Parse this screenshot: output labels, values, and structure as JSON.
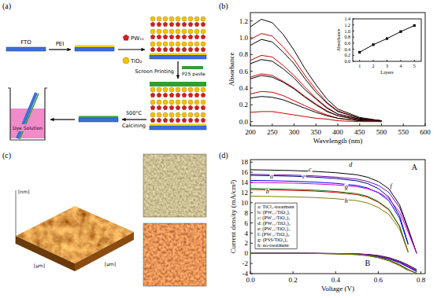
{
  "panel_labels": [
    "(a)",
    "(b)",
    "(c)",
    "(d)"
  ],
  "diagram": {
    "fto": "FTO",
    "pei": "PEI",
    "pw11": "PW₁₁",
    "tio2": "TiO₂",
    "screen_printing": "Screen Printing",
    "p25_paste": "P25 paste",
    "temperature": "500°C",
    "calcining": "Calcining",
    "dye_solution": "Dye Solution"
  },
  "afm": {
    "z_label": "[nm]",
    "x_label": "[μm]",
    "y_label": "[μm]"
  },
  "chart_data": [
    {
      "type": "line",
      "x_label": "Wavelength (nm)",
      "y_label": "Absorbance",
      "x": [
        200,
        225,
        250,
        275,
        300,
        325,
        350,
        375,
        400,
        450,
        500
      ],
      "series": [
        {
          "color": "#000000",
          "values": [
            1.13,
            1.22,
            1.18,
            1.04,
            0.85,
            0.63,
            0.44,
            0.27,
            0.15,
            0.05,
            0.01
          ]
        },
        {
          "color": "#cc0000",
          "values": [
            0.98,
            1.05,
            1.02,
            0.89,
            0.74,
            0.55,
            0.38,
            0.23,
            0.13,
            0.04,
            0.01
          ]
        },
        {
          "color": "#000000",
          "values": [
            0.91,
            0.98,
            0.95,
            0.83,
            0.69,
            0.51,
            0.35,
            0.22,
            0.12,
            0.04,
            0.01
          ]
        },
        {
          "color": "#cc0000",
          "values": [
            0.73,
            0.79,
            0.77,
            0.67,
            0.55,
            0.41,
            0.28,
            0.17,
            0.09,
            0.03,
            0.01
          ]
        },
        {
          "color": "#000000",
          "values": [
            0.69,
            0.74,
            0.72,
            0.63,
            0.52,
            0.38,
            0.27,
            0.16,
            0.09,
            0.03,
            0.01
          ]
        },
        {
          "color": "#cc0000",
          "values": [
            0.53,
            0.57,
            0.55,
            0.48,
            0.4,
            0.3,
            0.21,
            0.13,
            0.07,
            0.02,
            0.01
          ]
        },
        {
          "color": "#000000",
          "values": [
            0.51,
            0.55,
            0.53,
            0.47,
            0.39,
            0.29,
            0.2,
            0.12,
            0.07,
            0.02,
            0.01
          ]
        },
        {
          "color": "#cc0000",
          "values": [
            0.33,
            0.36,
            0.35,
            0.31,
            0.25,
            0.19,
            0.13,
            0.08,
            0.04,
            0.01,
            0.0
          ]
        },
        {
          "color": "#000000",
          "values": [
            0.28,
            0.3,
            0.29,
            0.26,
            0.21,
            0.16,
            0.11,
            0.07,
            0.04,
            0.01,
            0.0
          ]
        },
        {
          "color": "#cc0000",
          "values": [
            0.11,
            0.12,
            0.12,
            0.1,
            0.08,
            0.06,
            0.04,
            0.03,
            0.01,
            0.0,
            0.0
          ]
        }
      ],
      "xlim": [
        200,
        600
      ],
      "xticks": [
        200,
        250,
        300,
        350,
        400,
        450,
        500,
        550,
        600
      ],
      "ylim": [
        -0.05,
        1.3
      ],
      "yticks": [
        {
          "value": 0,
          "label": "0.0"
        },
        0.2,
        0.4,
        0.6,
        0.8,
        {
          "value": 1,
          "label": "1.0"
        },
        1.2
      ],
      "grid": false
    },
    {
      "type": "line",
      "marker": "square",
      "x_label": "Layers",
      "y_label": "Absorbance",
      "x": [
        1,
        2,
        3,
        4,
        5
      ],
      "values": [
        0.3,
        0.55,
        0.75,
        0.98,
        1.18
      ],
      "color": "#000000",
      "xlim": [
        0.5,
        5.5
      ],
      "xticks": [
        1,
        2,
        3,
        4,
        5
      ],
      "ylim": [
        0,
        1.4
      ],
      "yticks": [
        {
          "value": 0,
          "label": "0.0"
        },
        0.2,
        0.4,
        0.6,
        0.8,
        {
          "value": 1,
          "label": "1.0"
        },
        1.2,
        1.4
      ],
      "grid": false
    },
    {
      "type": "line",
      "x_label": "Voltage (V)",
      "y_label": "Current density (mA/cm²)",
      "x": [
        0,
        0.1,
        0.2,
        0.3,
        0.4,
        0.5,
        0.55,
        0.6,
        0.65,
        0.7,
        0.74,
        0.78
      ],
      "series": [
        {
          "name": "a: TiCl₄-treatment",
          "color": "#000080",
          "values": [
            15.4,
            15.32,
            15.22,
            15.05,
            14.78,
            14.32,
            13.78,
            12.78,
            11.09,
            7.39,
            1.85,
            null
          ]
        },
        {
          "name": "b: (PW₁₁/TiO₂)₁",
          "color": "#e00000",
          "values": [
            12.6,
            12.52,
            12.42,
            12.29,
            12.03,
            11.59,
            11.09,
            10.08,
            8.57,
            5.29,
            0.25,
            null
          ]
        },
        {
          "name": "c: (PW₁₁/TiO₂)₂",
          "color": "#6a0dad",
          "values": [
            15.6,
            15.52,
            15.44,
            15.29,
            15.05,
            14.66,
            14.2,
            13.42,
            12.01,
            9.05,
            4.68,
            0
          ]
        },
        {
          "name": "d: (PW₁₁/TiO₂)₃",
          "color": "#000000",
          "values": [
            16.5,
            16.42,
            16.34,
            16.17,
            15.92,
            15.51,
            15.02,
            14.19,
            12.71,
            9.57,
            4.95,
            0
          ]
        },
        {
          "name": "e: (PW₁₁/TiO₂)₄",
          "color": "#0000ff",
          "values": [
            14.4,
            14.33,
            14.23,
            14.07,
            13.82,
            13.39,
            12.89,
            11.95,
            10.37,
            6.91,
            1.73,
            null
          ]
        },
        {
          "name": "f: (PW₁₁/TiO₂)₅",
          "color": "#cc00cc",
          "values": [
            14.0,
            13.93,
            13.86,
            13.72,
            13.51,
            13.16,
            12.74,
            12.04,
            10.78,
            8.12,
            4.2,
            0
          ]
        },
        {
          "name": "g: (PSS/TiO₂)₃",
          "color": "#008000",
          "values": [
            12.8,
            12.72,
            12.62,
            12.48,
            12.22,
            11.78,
            11.26,
            10.24,
            8.7,
            5.38,
            0.26,
            null
          ]
        },
        {
          "name": "h: no-treatment",
          "color": "#808000",
          "values": [
            11.3,
            11.23,
            11.14,
            11.02,
            10.79,
            10.4,
            9.94,
            9.04,
            7.68,
            4.75,
            0.23,
            null
          ]
        },
        {
          "color": "#000080",
          "values": [
            0,
            0,
            0,
            -0.02,
            -0.06,
            -0.17,
            -0.32,
            -0.62,
            -1.1,
            -1.85,
            -2.7,
            -3.6
          ]
        },
        {
          "color": "#e00000",
          "values": [
            0,
            0,
            -0.01,
            -0.03,
            -0.09,
            -0.24,
            -0.44,
            -0.82,
            -1.4,
            -2.3,
            -3.3,
            -3.9
          ]
        },
        {
          "color": "#6a0dad",
          "values": [
            0,
            0,
            0,
            -0.01,
            -0.04,
            -0.12,
            -0.24,
            -0.5,
            -0.95,
            -1.7,
            -2.5,
            -3.4
          ]
        },
        {
          "color": "#000000",
          "values": [
            0,
            0,
            0,
            -0.01,
            -0.03,
            -0.1,
            -0.2,
            -0.42,
            -0.85,
            -1.55,
            -2.3,
            -3.2
          ]
        },
        {
          "color": "#0000ff",
          "values": [
            0,
            0,
            0,
            -0.02,
            -0.05,
            -0.15,
            -0.3,
            -0.58,
            -1.05,
            -1.8,
            -2.65,
            -3.55
          ]
        },
        {
          "color": "#cc00cc",
          "values": [
            0,
            0,
            0,
            -0.01,
            -0.04,
            -0.13,
            -0.26,
            -0.52,
            -0.98,
            -1.72,
            -2.55,
            -3.45
          ]
        },
        {
          "color": "#008000",
          "values": [
            0,
            0,
            -0.01,
            -0.03,
            -0.08,
            -0.21,
            -0.4,
            -0.76,
            -1.32,
            -2.2,
            -3.15,
            -3.95
          ]
        },
        {
          "color": "#808000",
          "values": [
            0,
            0,
            -0.01,
            -0.04,
            -0.1,
            -0.26,
            -0.48,
            -0.88,
            -1.5,
            -2.45,
            -3.4,
            null
          ]
        }
      ],
      "annotations": [
        {
          "text": "a",
          "x": 0.1,
          "y": 14.85
        },
        {
          "text": "b",
          "x": 0.08,
          "y": 11.8
        },
        {
          "text": "c",
          "x": 0.28,
          "y": 16.1
        },
        {
          "text": "d",
          "x": 0.47,
          "y": 17.1
        },
        {
          "text": "e",
          "x": 0.25,
          "y": 14.7
        },
        {
          "text": "f",
          "x": 0.66,
          "y": 12.9
        },
        {
          "text": "g",
          "x": 0.45,
          "y": 12.75
        },
        {
          "text": "h",
          "x": 0.45,
          "y": 9.9
        },
        {
          "text": "A",
          "x": 0.77,
          "y": 16.5
        },
        {
          "text": "B",
          "x": 0.55,
          "y": -2.5
        }
      ],
      "xlim": [
        0,
        0.82
      ],
      "xticks": [
        {
          "value": 0,
          "label": "0.0"
        },
        0.2,
        0.4,
        0.6,
        0.8
      ],
      "ylim": [
        -4,
        18.5
      ],
      "yticks": [
        -4,
        -2,
        0,
        2,
        4,
        6,
        8,
        10,
        12,
        14,
        16,
        18
      ],
      "legend": "left",
      "grid": false
    }
  ]
}
